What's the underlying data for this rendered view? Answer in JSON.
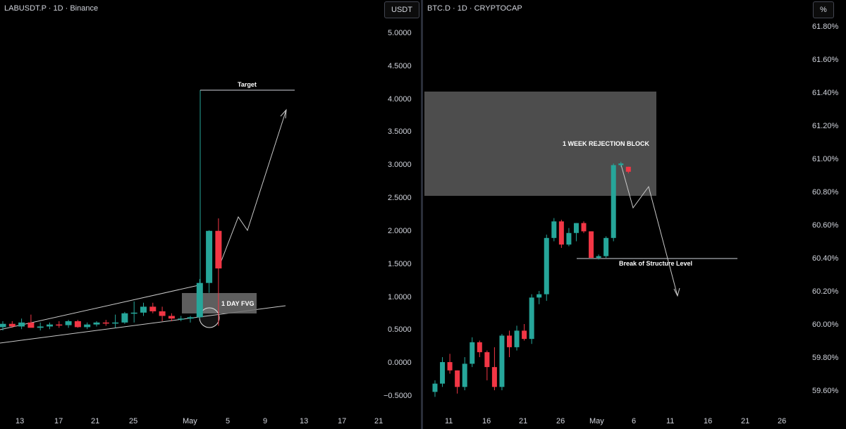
{
  "left_chart": {
    "title": "LABUSDT.P · 1D · Binance",
    "unit": "USDT",
    "y_ticks": [
      "5.0000",
      "4.5000",
      "4.0000",
      "3.5000",
      "3.0000",
      "2.5000",
      "2.0000",
      "1.5000",
      "1.0000",
      "0.5000",
      "0.0000",
      "−0.5000"
    ],
    "x_ticks": [
      "13",
      "17",
      "21",
      "25",
      "May",
      "5",
      "9",
      "13",
      "17",
      "21"
    ],
    "annotations": {
      "target": "Target",
      "fvg": "1 DAY FVG"
    }
  },
  "right_chart": {
    "title": "BTC.D · 1D · CRYPTOCAP",
    "unit": "%",
    "y_ticks": [
      "61.80%",
      "61.60%",
      "61.40%",
      "61.20%",
      "61.00%",
      "60.80%",
      "60.60%",
      "60.40%",
      "60.20%",
      "60.00%",
      "59.80%",
      "59.60%"
    ],
    "x_ticks": [
      "11",
      "16",
      "21",
      "26",
      "May",
      "6",
      "11",
      "16",
      "21",
      "26"
    ],
    "annotations": {
      "rejection": "1 WEEK REJECTION BLOCK",
      "bos": "Break of Structure Level"
    }
  },
  "colors": {
    "up": "#26a69a",
    "down": "#f23645",
    "background": "#000000",
    "zone": "#4a4a4a"
  },
  "chart_data": [
    {
      "type": "candlestick",
      "title": "LABUSDT.P · 1D · Binance",
      "ylabel": "USDT",
      "ylim": [
        -0.65,
        5.2
      ],
      "candles": [
        {
          "o": 0.53,
          "h": 0.62,
          "l": 0.48,
          "c": 0.58
        },
        {
          "o": 0.58,
          "h": 0.62,
          "l": 0.52,
          "c": 0.54
        },
        {
          "o": 0.54,
          "h": 0.66,
          "l": 0.5,
          "c": 0.6
        },
        {
          "o": 0.6,
          "h": 0.72,
          "l": 0.55,
          "c": 0.52
        },
        {
          "o": 0.52,
          "h": 0.6,
          "l": 0.48,
          "c": 0.54
        },
        {
          "o": 0.54,
          "h": 0.6,
          "l": 0.5,
          "c": 0.57
        },
        {
          "o": 0.57,
          "h": 0.62,
          "l": 0.52,
          "c": 0.56
        },
        {
          "o": 0.56,
          "h": 0.64,
          "l": 0.52,
          "c": 0.62
        },
        {
          "o": 0.62,
          "h": 0.64,
          "l": 0.52,
          "c": 0.53
        },
        {
          "o": 0.53,
          "h": 0.6,
          "l": 0.5,
          "c": 0.57
        },
        {
          "o": 0.57,
          "h": 0.62,
          "l": 0.54,
          "c": 0.6
        },
        {
          "o": 0.6,
          "h": 0.64,
          "l": 0.55,
          "c": 0.59
        },
        {
          "o": 0.59,
          "h": 0.72,
          "l": 0.52,
          "c": 0.6
        },
        {
          "o": 0.6,
          "h": 0.76,
          "l": 0.58,
          "c": 0.74
        },
        {
          "o": 0.74,
          "h": 0.92,
          "l": 0.6,
          "c": 0.75
        },
        {
          "o": 0.75,
          "h": 0.9,
          "l": 0.7,
          "c": 0.84
        },
        {
          "o": 0.84,
          "h": 0.9,
          "l": 0.74,
          "c": 0.77
        },
        {
          "o": 0.77,
          "h": 0.84,
          "l": 0.62,
          "c": 0.7
        },
        {
          "o": 0.7,
          "h": 0.74,
          "l": 0.62,
          "c": 0.66
        },
        {
          "o": 0.66,
          "h": 0.7,
          "l": 0.62,
          "c": 0.66
        },
        {
          "o": 0.66,
          "h": 0.7,
          "l": 0.6,
          "c": 0.68
        },
        {
          "o": 0.68,
          "h": 1.26,
          "l": 0.66,
          "c": 1.2
        },
        {
          "o": 1.2,
          "h": 2.0,
          "l": 1.05,
          "c": 1.99
        },
        {
          "o": 1.99,
          "h": 2.18,
          "l": 0.55,
          "c": 1.42
        }
      ]
    },
    {
      "type": "candlestick",
      "title": "BTC.D · 1D · CRYPTOCAP",
      "ylabel": "%",
      "ylim": [
        59.5,
        61.85
      ],
      "candles": [
        {
          "o": 59.59,
          "h": 59.66,
          "l": 59.56,
          "c": 59.64
        },
        {
          "o": 59.64,
          "h": 59.8,
          "l": 59.62,
          "c": 59.77
        },
        {
          "o": 59.77,
          "h": 59.82,
          "l": 59.7,
          "c": 59.72
        },
        {
          "o": 59.72,
          "h": 59.72,
          "l": 59.58,
          "c": 59.62
        },
        {
          "o": 59.62,
          "h": 59.8,
          "l": 59.6,
          "c": 59.76
        },
        {
          "o": 59.76,
          "h": 59.92,
          "l": 59.74,
          "c": 59.89
        },
        {
          "o": 59.89,
          "h": 59.9,
          "l": 59.8,
          "c": 59.83
        },
        {
          "o": 59.83,
          "h": 59.84,
          "l": 59.66,
          "c": 59.74
        },
        {
          "o": 59.74,
          "h": 59.86,
          "l": 59.6,
          "c": 59.62
        },
        {
          "o": 59.62,
          "h": 59.94,
          "l": 59.6,
          "c": 59.93
        },
        {
          "o": 59.93,
          "h": 59.96,
          "l": 59.8,
          "c": 59.86
        },
        {
          "o": 59.86,
          "h": 59.99,
          "l": 59.84,
          "c": 59.96
        },
        {
          "o": 59.96,
          "h": 60.0,
          "l": 59.9,
          "c": 59.91
        },
        {
          "o": 59.91,
          "h": 60.18,
          "l": 59.88,
          "c": 60.16
        },
        {
          "o": 60.16,
          "h": 60.2,
          "l": 60.12,
          "c": 60.18
        },
        {
          "o": 60.18,
          "h": 60.54,
          "l": 60.14,
          "c": 60.52
        },
        {
          "o": 60.52,
          "h": 60.64,
          "l": 60.5,
          "c": 60.62
        },
        {
          "o": 60.62,
          "h": 60.63,
          "l": 60.46,
          "c": 60.48
        },
        {
          "o": 60.48,
          "h": 60.58,
          "l": 60.47,
          "c": 60.55
        },
        {
          "o": 60.55,
          "h": 60.61,
          "l": 60.5,
          "c": 60.61
        },
        {
          "o": 60.61,
          "h": 60.62,
          "l": 60.55,
          "c": 60.56
        },
        {
          "o": 60.56,
          "h": 60.56,
          "l": 60.4,
          "c": 60.4
        },
        {
          "o": 60.4,
          "h": 60.42,
          "l": 60.39,
          "c": 60.41
        },
        {
          "o": 60.41,
          "h": 60.53,
          "l": 60.4,
          "c": 60.52
        },
        {
          "o": 60.52,
          "h": 60.97,
          "l": 60.5,
          "c": 60.96
        },
        {
          "o": 60.96,
          "h": 60.98,
          "l": 60.95,
          "c": 60.97
        },
        {
          "o": 60.95,
          "h": 60.95,
          "l": 60.91,
          "c": 60.92
        }
      ]
    }
  ]
}
